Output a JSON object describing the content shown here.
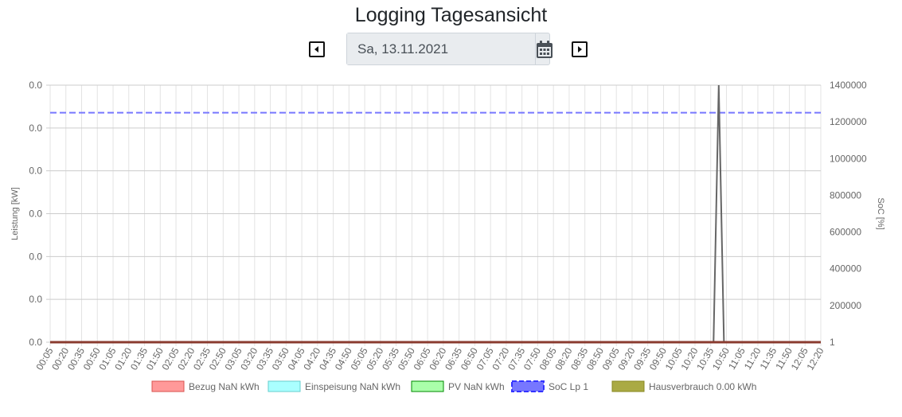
{
  "header": {
    "title": "Logging Tagesansicht",
    "date_value": "Sa, 13.11.2021",
    "prev_icon": "caret-left-square-icon",
    "next_icon": "caret-right-square-icon",
    "calendar_icon": "calendar-icon"
  },
  "chart_data": {
    "type": "line",
    "y_left": {
      "label": "Leistung [kW]",
      "ticks": [
        "0.0",
        "0.0",
        "0.0",
        "0.0",
        "0.0",
        "0.0",
        "0.0"
      ]
    },
    "y_right": {
      "label": "SoC [%]",
      "ticks": [
        "1",
        "200000",
        "400000",
        "600000",
        "800000",
        "1000000",
        "1200000",
        "1400000"
      ],
      "ylim": [
        0,
        1400000
      ]
    },
    "x_ticks": [
      "00:05",
      "00:20",
      "00:35",
      "00:50",
      "01:05",
      "01:20",
      "01:35",
      "01:50",
      "02:05",
      "02:20",
      "02:35",
      "02:50",
      "03:05",
      "03:20",
      "03:35",
      "03:50",
      "04:05",
      "04:20",
      "04:35",
      "04:50",
      "05:05",
      "05:20",
      "05:35",
      "05:50",
      "06:05",
      "06:20",
      "06:35",
      "06:50",
      "07:05",
      "07:20",
      "07:35",
      "07:50",
      "08:05",
      "08:20",
      "08:35",
      "08:50",
      "09:05",
      "09:20",
      "09:35",
      "09:50",
      "10:05",
      "10:20",
      "10:35",
      "10:50",
      "11:05",
      "11:20",
      "11:35",
      "11:50",
      "12:05",
      "12:20"
    ],
    "x_range_minutes": [
      5,
      745
    ],
    "grid": true,
    "legend_position": "bottom",
    "series": [
      {
        "name": "Bezug NaN kWh",
        "color": "#ff9999",
        "border": "#d9534f",
        "style": "solid",
        "values": "flat-zero"
      },
      {
        "name": "Einspeisung NaN kWh",
        "color": "#aaffff",
        "border": "#66cccc",
        "style": "solid",
        "values": "flat-zero"
      },
      {
        "name": "PV NaN kWh",
        "color": "#aaffaa",
        "border": "#008800",
        "style": "solid",
        "values": "flat-zero"
      },
      {
        "name": "SoC Lp 1",
        "color": "#7777ff",
        "border": "#3333ff",
        "style": "dashed",
        "axis": "right",
        "constant": 1250000
      },
      {
        "name": "Hausverbrauch 0.00 kWh",
        "color": "#aaaa44",
        "border": "#888822",
        "style": "solid",
        "values": "flat-zero"
      }
    ],
    "spike": {
      "color": "#666666",
      "axis": "right",
      "points": [
        [
          642,
          1
        ],
        [
          647,
          1400000
        ],
        [
          652,
          1
        ]
      ]
    }
  }
}
